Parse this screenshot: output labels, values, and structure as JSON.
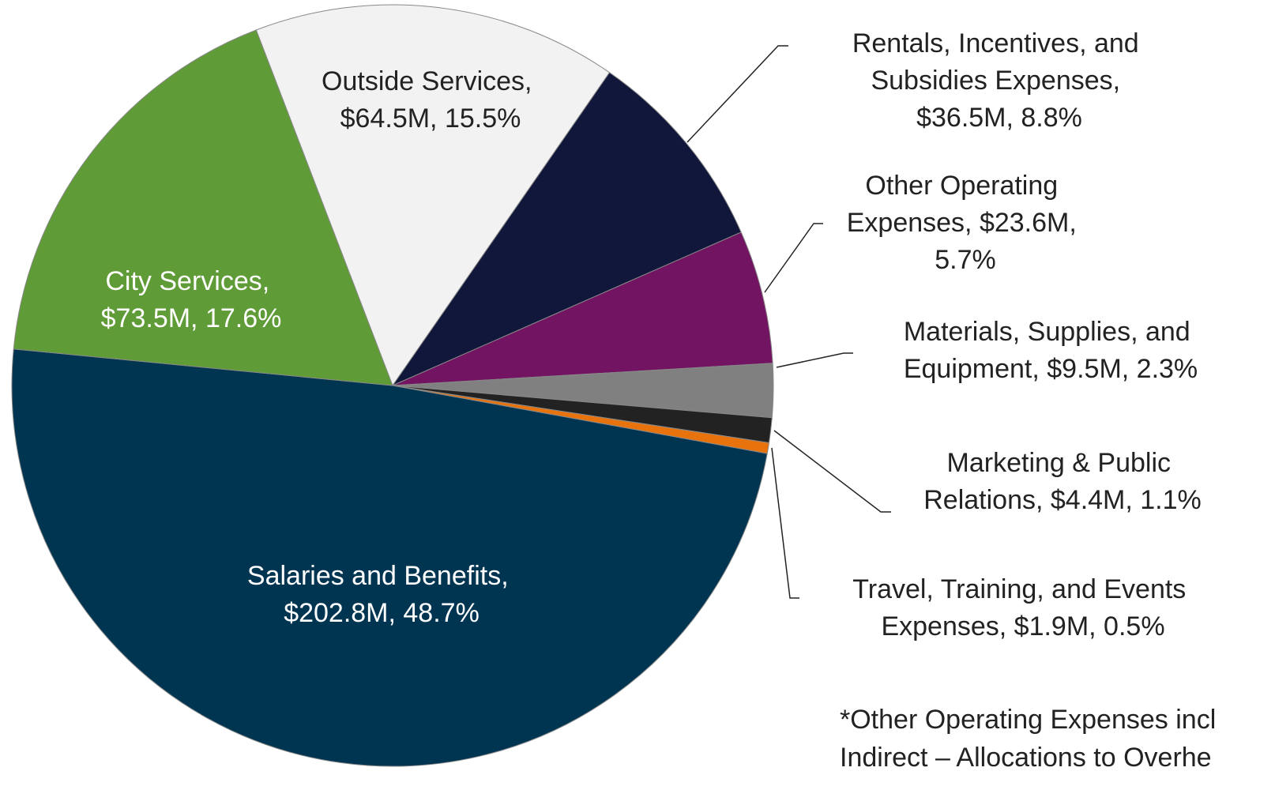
{
  "chart_data": {
    "type": "pie",
    "categories": [
      "Outside Services",
      "Rentals, Incentives, and Subsidies Expenses",
      "Other Operating Expenses",
      "Materials, Supplies, and Equipment",
      "Marketing & Public Relations",
      "Travel, Training, and Events Expenses",
      "Salaries and Benefits",
      "City Services"
    ],
    "values": [
      64.5,
      36.5,
      23.6,
      9.5,
      4.4,
      1.9,
      202.8,
      73.5
    ],
    "value_labels": [
      "Outside Services, $64.5M, 15.5%",
      "Rentals, Incentives, and Subsidies Expenses, $36.5M, 8.8%",
      "Other Operating Expenses, $23.6M, 5.7%",
      "Materials, Supplies, and Equipment, $9.5M, 2.3%",
      "Marketing & Public Relations, $4.4M, 1.1%",
      "Travel, Training, and Events Expenses, $1.9M, 0.5%",
      "Salaries and Benefits, $202.8M, 48.7%",
      "City Services, $73.5M, 17.6%"
    ],
    "colors": [
      "#f2f2f2",
      "#10173a",
      "#721462",
      "#808080",
      "#222222",
      "#e8730c",
      "#003552",
      "#5f9b36"
    ],
    "note": [
      "*Other Operating Expenses incl",
      "Indirect –  Allocations to Overhe"
    ]
  }
}
